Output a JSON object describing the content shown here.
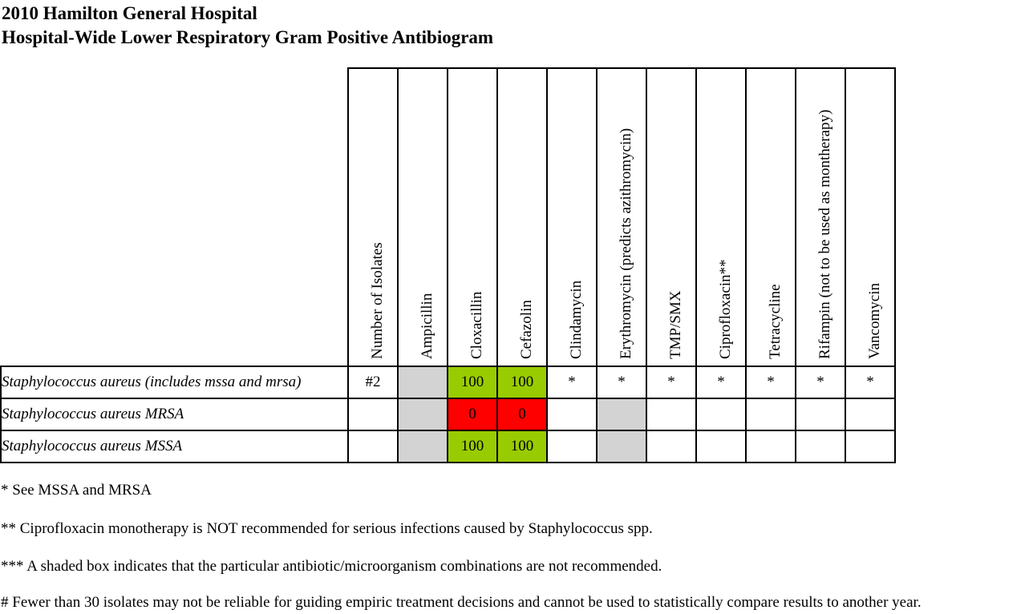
{
  "title_line1": "2010 Hamilton General Hospital",
  "title_line2": "Hospital-Wide Lower Respiratory Gram Positive Antibiogram",
  "columns": [
    "Number of Isolates",
    "Ampicillin",
    "Cloxacillin",
    "Cefazolin",
    "Clindamycin",
    "Erythromycin (predicts azithromycin)",
    "TMP/SMX",
    "Ciprofloxacin**",
    "Tetracycline",
    "Rifampin (not to be used as montherapy)",
    "Vancomycin"
  ],
  "rows": [
    {
      "organism": "Staphylococcus aureus (includes mssa and mrsa)",
      "cells": [
        "#2",
        "",
        "100",
        "100",
        "*",
        "*",
        "*",
        "*",
        "*",
        "*",
        "*"
      ],
      "shade": [
        "",
        "gray",
        "green",
        "green",
        "",
        "",
        "",
        "",
        "",
        "",
        ""
      ]
    },
    {
      "organism": "Staphylococcus aureus MRSA",
      "cells": [
        "",
        "",
        "0",
        "0",
        "",
        "",
        "",
        "",
        "",
        "",
        ""
      ],
      "shade": [
        "",
        "gray",
        "red",
        "red",
        "",
        "gray",
        "",
        "",
        "",
        "",
        ""
      ]
    },
    {
      "organism": "Staphylococcus aureus MSSA",
      "cells": [
        "",
        "",
        "100",
        "100",
        "",
        "",
        "",
        "",
        "",
        "",
        ""
      ],
      "shade": [
        "",
        "gray",
        "green",
        "green",
        "",
        "gray",
        "",
        "",
        "",
        "",
        ""
      ]
    }
  ],
  "notes": [
    "* See MSSA and MRSA",
    "** Ciprofloxacin monotherapy is NOT recommended for serious infections caused by Staphylococcus spp.",
    "*** A shaded box indicates that the particular antibiotic/microorganism combinations are not recommended.",
    "# Fewer than 30 isolates may not be reliable for guiding empiric treatment decisions and cannot be used to statistically compare results to another year."
  ],
  "colors": {
    "gray": "#d3d3d3",
    "green": "#99cc00",
    "red": "#ff0000"
  }
}
